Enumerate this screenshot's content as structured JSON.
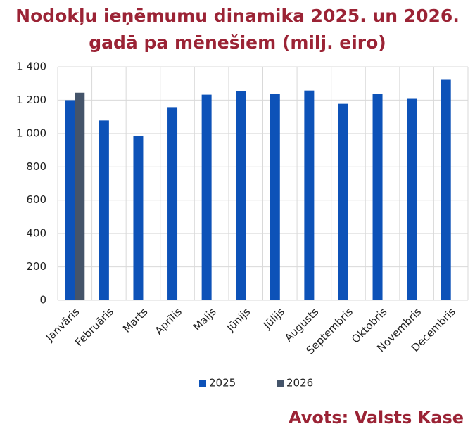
{
  "chart_data": {
    "type": "bar",
    "title": "Nodokļu ieņēmumu dinamika 2025. un 2026. gadā pa mēnešiem (milj. eiro)",
    "source": "Avots: Valsts Kase",
    "categories": [
      "Janvāris",
      "Februāris",
      "Marts",
      "Aprīlis",
      "Maijs",
      "Jūnijs",
      "Jūlijs",
      "Augusts",
      "Septembris",
      "Oktobris",
      "Novembris",
      "Decembris"
    ],
    "series": [
      {
        "name": "2025",
        "color": "#0d52b8",
        "values": [
          1200,
          1078,
          985,
          1158,
          1233,
          1255,
          1238,
          1258,
          1178,
          1238,
          1208,
          1322
        ]
      },
      {
        "name": "2026",
        "color": "#44546a",
        "values": [
          1245,
          null,
          null,
          null,
          null,
          null,
          null,
          null,
          null,
          null,
          null,
          null
        ]
      }
    ],
    "ylim": [
      0,
      1400
    ],
    "yticks": [
      0,
      200,
      400,
      600,
      800,
      {
        "value": 1000,
        "label": "1 000"
      },
      {
        "value": 1200,
        "label": "1 200"
      },
      {
        "value": 1400,
        "label": "1 400"
      }
    ],
    "grid": true,
    "legend": "bottom"
  }
}
